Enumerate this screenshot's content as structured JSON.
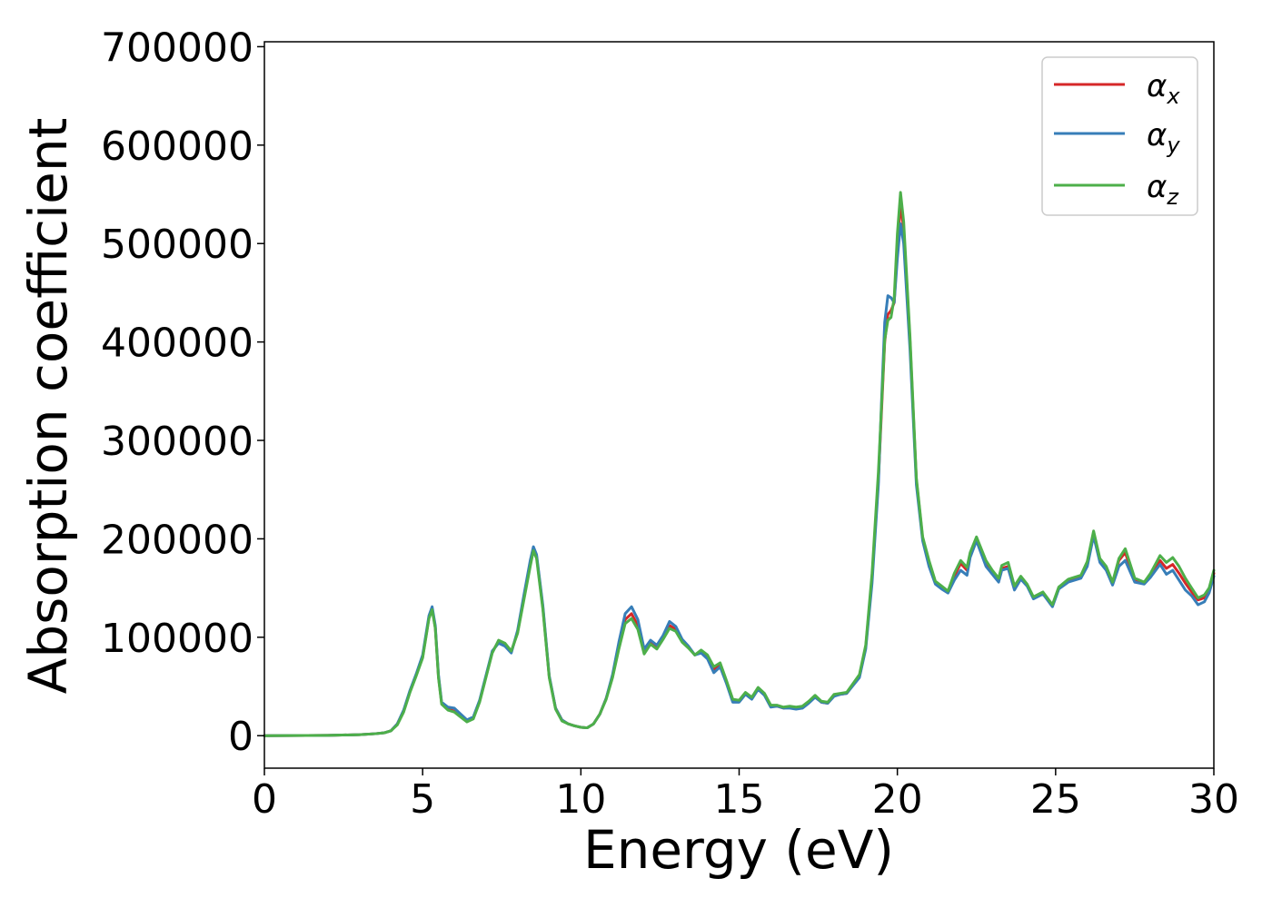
{
  "chart_data": {
    "type": "line",
    "title": "",
    "xlabel": "Energy (eV)",
    "ylabel": "Absorption coefficient",
    "xlim": [
      0,
      30
    ],
    "ylim": [
      -33000,
      705000
    ],
    "xticks": [
      0,
      5,
      10,
      15,
      20,
      25,
      30
    ],
    "yticks": [
      0,
      100000,
      200000,
      300000,
      400000,
      500000,
      600000,
      700000
    ],
    "grid": false,
    "legend_position": "top-right",
    "series": [
      {
        "name": "α_x",
        "color": "#d62728",
        "x": [
          0,
          2,
          3,
          3.5,
          3.8,
          4.0,
          4.2,
          4.4,
          4.6,
          4.8,
          5.0,
          5.2,
          5.3,
          5.4,
          5.5,
          5.6,
          5.8,
          6.0,
          6.2,
          6.4,
          6.6,
          6.8,
          7.0,
          7.2,
          7.4,
          7.6,
          7.8,
          8.0,
          8.2,
          8.4,
          8.5,
          8.6,
          8.8,
          9.0,
          9.2,
          9.4,
          9.6,
          9.8,
          10.0,
          10.2,
          10.4,
          10.6,
          10.8,
          11.0,
          11.2,
          11.4,
          11.6,
          11.8,
          12.0,
          12.2,
          12.4,
          12.6,
          12.8,
          13.0,
          13.2,
          13.4,
          13.6,
          13.8,
          14.0,
          14.2,
          14.4,
          14.6,
          14.8,
          15.0,
          15.2,
          15.4,
          15.6,
          15.8,
          16.0,
          16.2,
          16.4,
          16.6,
          16.8,
          17.0,
          17.2,
          17.4,
          17.6,
          17.8,
          18.0,
          18.2,
          18.4,
          18.6,
          18.8,
          19.0,
          19.2,
          19.4,
          19.5,
          19.6,
          19.7,
          19.8,
          19.9,
          20.0,
          20.1,
          20.2,
          20.4,
          20.6,
          20.8,
          21.0,
          21.2,
          21.4,
          21.6,
          21.8,
          22.0,
          22.2,
          22.3,
          22.5,
          22.8,
          23.0,
          23.2,
          23.3,
          23.5,
          23.7,
          23.9,
          24.1,
          24.3,
          24.6,
          24.9,
          25.1,
          25.4,
          25.8,
          26.0,
          26.2,
          26.4,
          26.6,
          26.8,
          27.0,
          27.2,
          27.5,
          27.8,
          28.0,
          28.3,
          28.5,
          28.7,
          28.9,
          29.1,
          29.3,
          29.5,
          29.7,
          29.85,
          30.0
        ],
        "values": [
          0,
          300,
          1000,
          2000,
          3000,
          5000,
          12000,
          25000,
          45000,
          62000,
          80000,
          120000,
          129000,
          110000,
          60000,
          33000,
          27000,
          25000,
          20000,
          15000,
          18000,
          35000,
          60000,
          85000,
          96000,
          93000,
          85000,
          105000,
          140000,
          175000,
          190000,
          182000,
          130000,
          60000,
          28000,
          16000,
          12000,
          10000,
          8500,
          8000,
          12000,
          22000,
          38000,
          60000,
          90000,
          118000,
          124000,
          112000,
          85000,
          95000,
          90000,
          100000,
          112000,
          108000,
          96000,
          90000,
          82000,
          85000,
          80000,
          67000,
          72000,
          55000,
          36000,
          35000,
          43000,
          38000,
          48000,
          42000,
          30000,
          30000,
          28000,
          29000,
          28000,
          29000,
          34000,
          40000,
          34000,
          33000,
          41000,
          42000,
          43000,
          52000,
          60000,
          90000,
          160000,
          260000,
          330000,
          400000,
          428000,
          432000,
          440000,
          495000,
          540000,
          515000,
          400000,
          260000,
          200000,
          175000,
          155000,
          150000,
          146000,
          162000,
          175000,
          168000,
          183000,
          200000,
          175000,
          166000,
          158000,
          170000,
          172000,
          150000,
          160000,
          153000,
          140000,
          145000,
          132000,
          150000,
          158000,
          162000,
          175000,
          206000,
          178000,
          170000,
          155000,
          178000,
          186000,
          158000,
          155000,
          163000,
          178000,
          170000,
          174000,
          165000,
          155000,
          146000,
          138000,
          140000,
          148000,
          165000
        ]
      },
      {
        "name": "α_y",
        "color": "#377eb8",
        "x": [
          0,
          2,
          3,
          3.5,
          3.8,
          4.0,
          4.2,
          4.4,
          4.6,
          4.8,
          5.0,
          5.2,
          5.3,
          5.4,
          5.5,
          5.6,
          5.8,
          6.0,
          6.2,
          6.4,
          6.6,
          6.8,
          7.0,
          7.2,
          7.4,
          7.6,
          7.8,
          8.0,
          8.2,
          8.4,
          8.5,
          8.6,
          8.8,
          9.0,
          9.2,
          9.4,
          9.6,
          9.8,
          10.0,
          10.2,
          10.4,
          10.6,
          10.8,
          11.0,
          11.2,
          11.4,
          11.6,
          11.8,
          12.0,
          12.2,
          12.4,
          12.6,
          12.8,
          13.0,
          13.2,
          13.4,
          13.6,
          13.8,
          14.0,
          14.2,
          14.4,
          14.6,
          14.8,
          15.0,
          15.2,
          15.4,
          15.6,
          15.8,
          16.0,
          16.2,
          16.4,
          16.6,
          16.8,
          17.0,
          17.2,
          17.4,
          17.6,
          17.8,
          18.0,
          18.2,
          18.4,
          18.6,
          18.8,
          19.0,
          19.2,
          19.4,
          19.5,
          19.6,
          19.7,
          19.8,
          19.9,
          20.0,
          20.1,
          20.2,
          20.4,
          20.6,
          20.8,
          21.0,
          21.2,
          21.4,
          21.6,
          21.8,
          22.0,
          22.2,
          22.3,
          22.5,
          22.8,
          23.0,
          23.2,
          23.3,
          23.5,
          23.7,
          23.9,
          24.1,
          24.3,
          24.6,
          24.9,
          25.1,
          25.4,
          25.8,
          26.0,
          26.2,
          26.4,
          26.6,
          26.8,
          27.0,
          27.2,
          27.5,
          27.8,
          28.0,
          28.3,
          28.5,
          28.7,
          28.9,
          29.1,
          29.3,
          29.5,
          29.7,
          29.85,
          30.0
        ],
        "values": [
          0,
          300,
          1000,
          2000,
          3000,
          5000,
          12000,
          26000,
          46000,
          63000,
          82000,
          122000,
          131000,
          112000,
          62000,
          34000,
          29000,
          28000,
          22000,
          16000,
          19000,
          36000,
          61000,
          86000,
          94000,
          91000,
          84000,
          107000,
          143000,
          178000,
          192000,
          184000,
          132000,
          61000,
          28000,
          16000,
          12000,
          10000,
          8500,
          8000,
          12000,
          22000,
          38000,
          62000,
          95000,
          124000,
          131000,
          118000,
          88000,
          97000,
          92000,
          102000,
          116000,
          111000,
          98000,
          91000,
          82000,
          84000,
          78000,
          64000,
          70000,
          53000,
          34000,
          34000,
          42000,
          37000,
          47000,
          41000,
          29000,
          30000,
          28000,
          28000,
          27000,
          28000,
          33000,
          39000,
          34000,
          33000,
          40000,
          42000,
          43000,
          51000,
          59000,
          88000,
          155000,
          255000,
          340000,
          420000,
          447000,
          445000,
          440000,
          485000,
          520000,
          500000,
          392000,
          255000,
          198000,
          172000,
          154000,
          149000,
          145000,
          158000,
          168000,
          163000,
          181000,
          198000,
          172000,
          164000,
          156000,
          168000,
          170000,
          148000,
          159000,
          152000,
          139000,
          144000,
          131000,
          149000,
          156000,
          160000,
          172000,
          203000,
          176000,
          168000,
          153000,
          172000,
          178000,
          156000,
          154000,
          161000,
          174000,
          164000,
          168000,
          158000,
          148000,
          142000,
          133000,
          136000,
          145000,
          162000
        ]
      },
      {
        "name": "α_z",
        "color": "#4daf4a",
        "x": [
          0,
          2,
          3,
          3.5,
          3.8,
          4.0,
          4.2,
          4.4,
          4.6,
          4.8,
          5.0,
          5.2,
          5.3,
          5.4,
          5.5,
          5.6,
          5.8,
          6.0,
          6.2,
          6.4,
          6.6,
          6.8,
          7.0,
          7.2,
          7.4,
          7.6,
          7.8,
          8.0,
          8.2,
          8.4,
          8.5,
          8.6,
          8.8,
          9.0,
          9.2,
          9.4,
          9.6,
          9.8,
          10.0,
          10.2,
          10.4,
          10.6,
          10.8,
          11.0,
          11.2,
          11.4,
          11.6,
          11.8,
          12.0,
          12.2,
          12.4,
          12.6,
          12.8,
          13.0,
          13.2,
          13.4,
          13.6,
          13.8,
          14.0,
          14.2,
          14.4,
          14.6,
          14.8,
          15.0,
          15.2,
          15.4,
          15.6,
          15.8,
          16.0,
          16.2,
          16.4,
          16.6,
          16.8,
          17.0,
          17.2,
          17.4,
          17.6,
          17.8,
          18.0,
          18.2,
          18.4,
          18.6,
          18.8,
          19.0,
          19.2,
          19.4,
          19.5,
          19.6,
          19.7,
          19.8,
          19.9,
          20.0,
          20.1,
          20.2,
          20.4,
          20.6,
          20.8,
          21.0,
          21.2,
          21.4,
          21.6,
          21.8,
          22.0,
          22.2,
          22.3,
          22.5,
          22.8,
          23.0,
          23.2,
          23.3,
          23.5,
          23.7,
          23.9,
          24.1,
          24.3,
          24.6,
          24.9,
          25.1,
          25.4,
          25.8,
          26.0,
          26.2,
          26.4,
          26.6,
          26.8,
          27.0,
          27.2,
          27.5,
          27.8,
          28.0,
          28.3,
          28.5,
          28.7,
          28.9,
          29.1,
          29.3,
          29.5,
          29.7,
          29.85,
          30.0
        ],
        "values": [
          0,
          300,
          1000,
          2000,
          3000,
          5000,
          11000,
          24000,
          44000,
          61000,
          79000,
          119000,
          128000,
          109000,
          59000,
          32000,
          26000,
          24000,
          19000,
          14000,
          17000,
          34000,
          59000,
          84000,
          97000,
          94000,
          86000,
          104000,
          138000,
          172000,
          188000,
          180000,
          128000,
          59000,
          27000,
          15000,
          12000,
          10000,
          8500,
          8000,
          12000,
          22000,
          37000,
          59000,
          88000,
          114000,
          119000,
          108000,
          83000,
          93000,
          88000,
          98000,
          109000,
          106000,
          95000,
          89000,
          82000,
          87000,
          82000,
          70000,
          74000,
          56000,
          37000,
          36000,
          44000,
          39000,
          49000,
          43000,
          31000,
          31000,
          29000,
          30000,
          29000,
          30000,
          35000,
          41000,
          35000,
          34000,
          42000,
          43000,
          44000,
          53000,
          62000,
          92000,
          165000,
          268000,
          335000,
          402000,
          422000,
          425000,
          445000,
          510000,
          552000,
          522000,
          405000,
          262000,
          202000,
          178000,
          157000,
          152000,
          147000,
          165000,
          178000,
          171000,
          186000,
          202000,
          178000,
          168000,
          160000,
          173000,
          176000,
          152000,
          162000,
          154000,
          141000,
          146000,
          133000,
          151000,
          159000,
          163000,
          177000,
          208000,
          180000,
          172000,
          156000,
          180000,
          190000,
          160000,
          156000,
          165000,
          183000,
          176000,
          181000,
          172000,
          160000,
          150000,
          140000,
          143000,
          150000,
          168000
        ]
      }
    ]
  },
  "legend": {
    "entries": [
      {
        "symbol": "α",
        "subscript": "x"
      },
      {
        "symbol": "α",
        "subscript": "y"
      },
      {
        "symbol": "α",
        "subscript": "z"
      }
    ]
  }
}
